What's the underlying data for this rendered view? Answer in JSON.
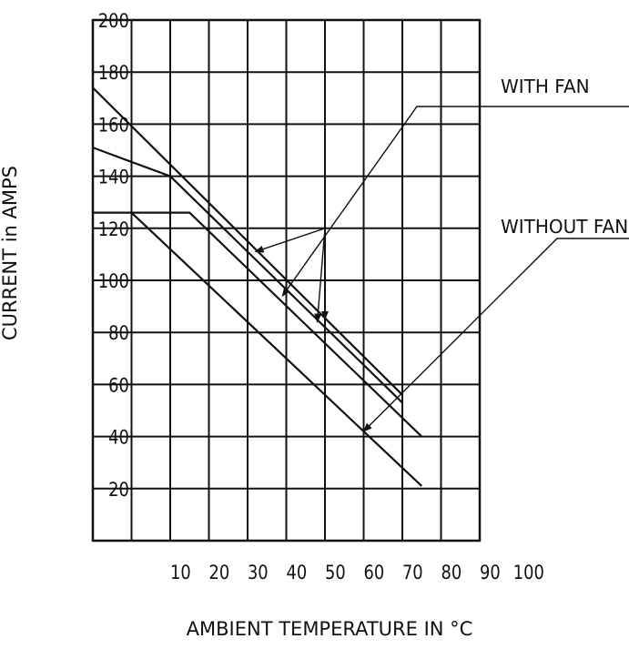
{
  "chart_data": {
    "type": "line",
    "title": "",
    "xlabel": "AMBIENT TEMPERATURE IN °C",
    "ylabel": "CURRENT in AMPS",
    "xlim": [
      0,
      100
    ],
    "ylim": [
      0,
      200
    ],
    "x_ticks": [
      "10",
      "20",
      "30",
      "40",
      "50",
      "60",
      "70",
      "80",
      "90",
      "100"
    ],
    "y_ticks": [
      "200",
      "180",
      "160",
      "140",
      "120",
      "100",
      "80",
      "60",
      "40",
      "20"
    ],
    "grid": true,
    "legend": "none",
    "series": [
      {
        "points": [
          [
            0,
            174
          ],
          [
            80,
            56
          ]
        ]
      },
      {
        "points": [
          [
            0,
            151
          ],
          [
            20,
            140
          ],
          [
            80,
            53
          ]
        ]
      },
      {
        "points": [
          [
            0,
            126
          ],
          [
            25,
            126
          ],
          [
            85,
            40
          ]
        ]
      },
      {
        "points": [
          [
            10,
            126
          ],
          [
            85,
            21
          ]
        ]
      }
    ],
    "annotations": [
      {
        "text": "WITH FAN",
        "arrow_targets": [
          [
            42,
            111
          ],
          [
            49,
            94
          ],
          [
            58,
            84
          ],
          [
            60,
            85
          ]
        ]
      },
      {
        "text": "WITHOUT FAN",
        "arrow_targets": [
          [
            70,
            42
          ]
        ]
      }
    ],
    "colors": {
      "ink": "#111111",
      "background": "#ffffff"
    }
  }
}
